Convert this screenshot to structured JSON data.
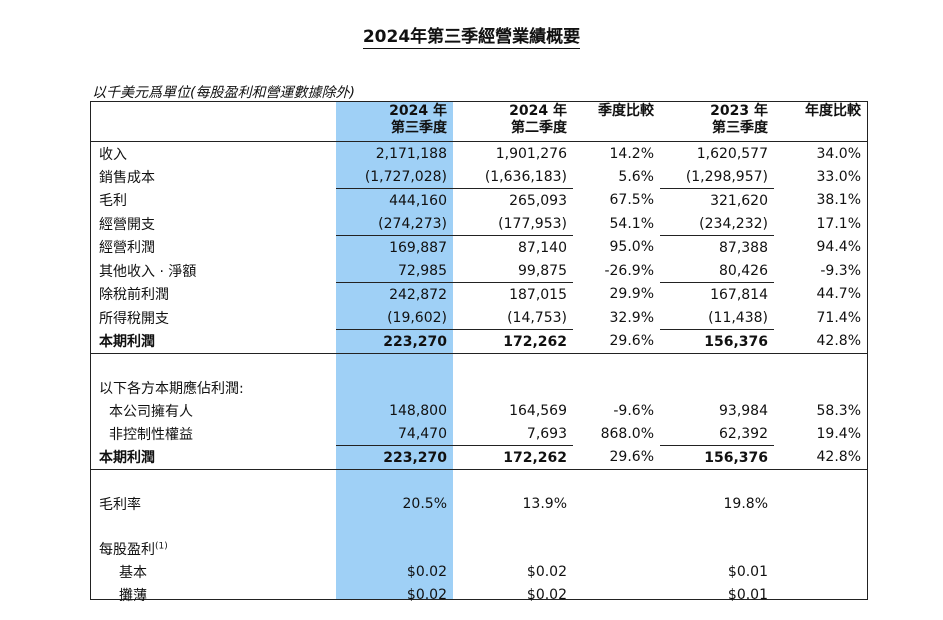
{
  "title": "2024年第三季經營業績概要",
  "unit_note": "以千美元爲單位(每股盈利和營運數據除外)",
  "headers": {
    "c1": [
      "2024 年",
      "第三季度"
    ],
    "c2": [
      "2024 年",
      "第二季度"
    ],
    "c3": "季度比較",
    "c4": [
      "2023 年",
      "第三季度"
    ],
    "c5": "年度比較"
  },
  "rows": [
    {
      "label": "收入",
      "v": [
        "2,171,188",
        "1,901,276",
        "14.2%",
        "1,620,577",
        "34.0%"
      ]
    },
    {
      "label": "銷售成本",
      "v": [
        "(1,727,028)",
        "(1,636,183)",
        "5.6%",
        "(1,298,957)",
        "33.0%"
      ]
    },
    {
      "label": "毛利",
      "v": [
        "444,160",
        "265,093",
        "67.5%",
        "321,620",
        "38.1%"
      ]
    },
    {
      "label": "經營開支",
      "v": [
        "(274,273)",
        "(177,953)",
        "54.1%",
        "(234,232)",
        "17.1%"
      ]
    },
    {
      "label": "經營利潤",
      "v": [
        "169,887",
        "87,140",
        "95.0%",
        "87,388",
        "94.4%"
      ]
    },
    {
      "label": "其他收入 · 淨額",
      "v": [
        "72,985",
        "99,875",
        "-26.9%",
        "80,426",
        "-9.3%"
      ]
    },
    {
      "label": "除稅前利潤",
      "v": [
        "242,872",
        "187,015",
        "29.9%",
        "167,814",
        "44.7%"
      ]
    },
    {
      "label": "所得稅開支",
      "v": [
        "(19,602)",
        "(14,753)",
        "32.9%",
        "(11,438)",
        "71.4%"
      ]
    },
    {
      "label": "本期利潤",
      "v": [
        "223,270",
        "172,262",
        "29.6%",
        "156,376",
        "42.8%"
      ]
    },
    {
      "label": "以下各方本期應佔利潤:",
      "v": []
    },
    {
      "label": "本公司擁有人",
      "v": [
        "148,800",
        "164,569",
        "-9.6%",
        "93,984",
        "58.3%"
      ]
    },
    {
      "label": "非控制性權益",
      "v": [
        "74,470",
        "7,693",
        "868.0%",
        "62,392",
        "19.4%"
      ]
    },
    {
      "label": "本期利潤",
      "v": [
        "223,270",
        "172,262",
        "29.6%",
        "156,376",
        "42.8%"
      ]
    },
    {
      "label": "毛利率",
      "v": [
        "20.5%",
        "13.9%",
        "",
        "19.8%",
        ""
      ]
    },
    {
      "label": "每股盈利",
      "sup": "(1)",
      "v": []
    },
    {
      "label": "基本",
      "v": [
        "$0.02",
        "$0.02",
        "",
        "$0.01",
        ""
      ]
    },
    {
      "label": "攤薄",
      "v": [
        "$0.02",
        "$0.02",
        "",
        "$0.01",
        ""
      ]
    }
  ]
}
